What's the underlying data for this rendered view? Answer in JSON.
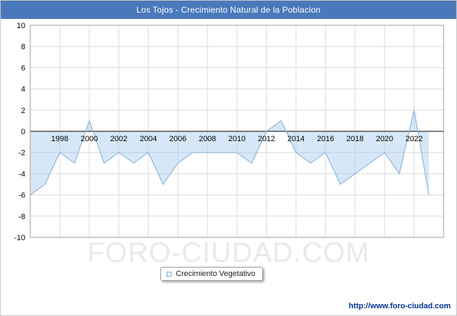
{
  "title": "Los Tojos - Crecimiento Natural de la Poblacion",
  "legend": {
    "label": "Crecimiento Vegetativo"
  },
  "watermark": "FORO-CIUDAD.COM",
  "footer": {
    "url_text": "http://www.foro-ciudad.com"
  },
  "colors": {
    "title_bg": "#4a79bb",
    "title_text": "#ffffff",
    "line": "#8fb6dd",
    "area_fill": "rgba(165,203,238,0.45)",
    "grid": "#d9d9d9",
    "zero_line": "#000000",
    "plot_border": "#9e9e9e",
    "axis_text": "#000000",
    "watermark_text": "#e9e9e9",
    "url_text": "#003399"
  },
  "chart_data": {
    "type": "area",
    "title": "Los Tojos - Crecimiento Natural de la Poblacion",
    "xlabel": "",
    "ylabel": "",
    "xlim": [
      1996,
      2024
    ],
    "ylim": [
      -10,
      10
    ],
    "grid": true,
    "legend_position": "bottom",
    "xticks": [
      1998,
      2000,
      2002,
      2004,
      2006,
      2008,
      2010,
      2012,
      2014,
      2016,
      2018,
      2020,
      2022
    ],
    "yticks": [
      -10,
      -8,
      -6,
      -4,
      -2,
      0,
      2,
      4,
      6,
      8,
      10
    ],
    "series": [
      {
        "name": "Crecimiento Vegetativo",
        "x": [
          1996,
          1997,
          1998,
          1999,
          2000,
          2001,
          2002,
          2003,
          2004,
          2005,
          2006,
          2007,
          2008,
          2009,
          2010,
          2011,
          2012,
          2013,
          2014,
          2015,
          2016,
          2017,
          2018,
          2019,
          2020,
          2021,
          2022,
          2023
        ],
        "values": [
          -6,
          -5,
          -2,
          -3,
          1,
          -3,
          -2,
          -3,
          -2,
          -5,
          -3,
          -2,
          -2,
          -2,
          -2,
          -3,
          0,
          1,
          -2,
          -3,
          -2,
          -5,
          -4,
          -3,
          -2,
          -4,
          2,
          -6
        ]
      }
    ]
  }
}
